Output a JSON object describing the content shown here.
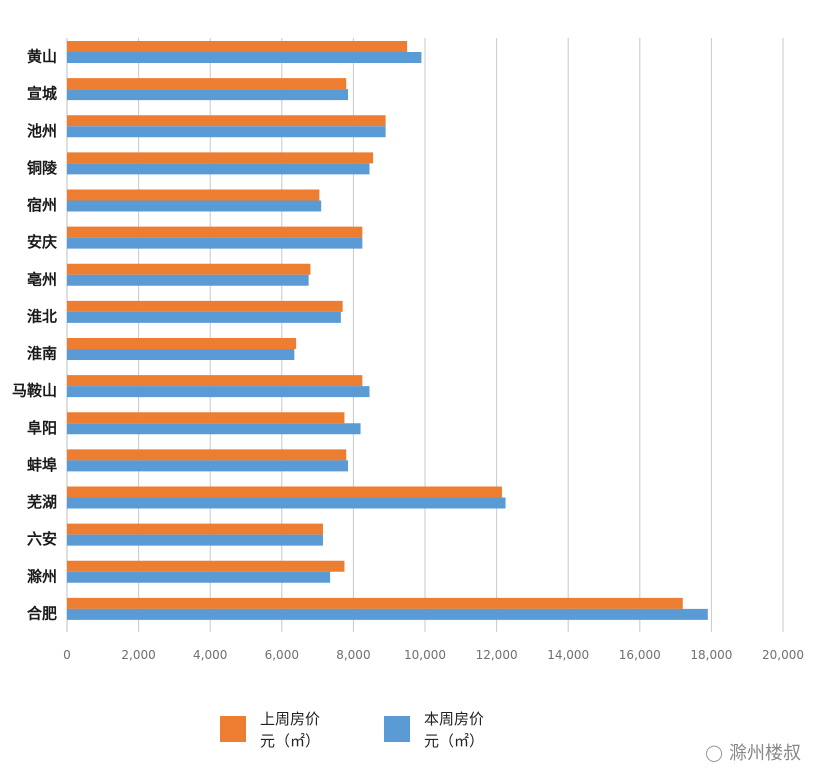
{
  "chart_data": {
    "type": "bar",
    "orientation": "horizontal",
    "categories": [
      "黄山",
      "宣城",
      "池州",
      "铜陵",
      "宿州",
      "安庆",
      "亳州",
      "淮北",
      "淮南",
      "马鞍山",
      "阜阳",
      "蚌埠",
      "芜湖",
      "六安",
      "滁州",
      "合肥"
    ],
    "series": [
      {
        "name": "上周房价元（㎡）",
        "color": "#ED7D31",
        "values": [
          9500,
          7800,
          8900,
          8550,
          7050,
          8250,
          6800,
          7700,
          6400,
          8250,
          7750,
          7800,
          12150,
          7150,
          7750,
          17200
        ]
      },
      {
        "name": "本周房价元（㎡）",
        "color": "#5B9BD5",
        "values": [
          9900,
          7850,
          8900,
          8450,
          7100,
          8250,
          6750,
          7650,
          6350,
          8450,
          8200,
          7850,
          12250,
          7150,
          7350,
          17900
        ]
      }
    ],
    "xlim": [
      0,
      20000
    ],
    "x_ticks": [
      "0",
      "2,000",
      "4,000",
      "6,000",
      "8,000",
      "10,000",
      "12,000",
      "14,000",
      "16,000",
      "18,000",
      "20,000"
    ],
    "grid": true,
    "legend_position": "bottom"
  },
  "legend": {
    "last_week_line1": "上周房价",
    "last_week_line2": "元（㎡）",
    "this_week_line1": "本周房价",
    "this_week_line2": "元（㎡）"
  },
  "footer": {
    "account_name": "滁州楼叔"
  }
}
